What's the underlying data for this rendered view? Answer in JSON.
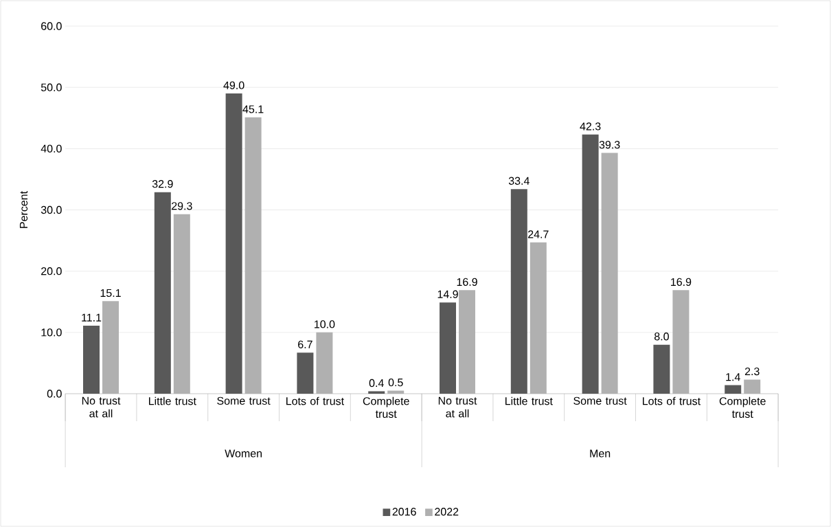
{
  "chart_data": {
    "type": "bar",
    "ylabel": "Percent",
    "categories": [
      "No trust at all",
      "Little trust",
      "Some trust",
      "Lots of trust",
      "Complete trust",
      "No trust at all",
      "Little trust",
      "Some trust",
      "Lots of trust",
      "Complete trust"
    ],
    "series": [
      {
        "name": "2016",
        "color": "#595959",
        "values": [
          11.1,
          32.9,
          49.0,
          6.7,
          0.4,
          14.9,
          33.4,
          42.3,
          8.0,
          1.4
        ],
        "value_labels": [
          "11.1",
          "32.9",
          "49.0",
          "6.7",
          "0.4",
          "14.9",
          "33.4",
          "42.3",
          "8.0",
          "1.4"
        ]
      },
      {
        "name": "2022",
        "color": "#b0b0b0",
        "values": [
          15.1,
          29.3,
          45.1,
          10.0,
          0.5,
          16.9,
          24.7,
          39.3,
          16.9,
          2.3
        ],
        "value_labels": [
          "15.1",
          "29.3",
          "45.1",
          "10.0",
          "0.5",
          "16.9",
          "24.7",
          "39.3",
          "16.9",
          "2.3"
        ]
      }
    ],
    "annotations": [
      "Women",
      "Men"
    ],
    "ylim": [
      0,
      60
    ],
    "yticks": [
      {
        "value": 0,
        "label": "0.0"
      },
      {
        "value": 10,
        "label": "10.0"
      },
      {
        "value": 20,
        "label": "20.0"
      },
      {
        "value": 30,
        "label": "30.0"
      },
      {
        "value": 40,
        "label": "40.0"
      },
      {
        "value": 50,
        "label": "50.0"
      },
      {
        "value": 60,
        "label": "60.0"
      }
    ],
    "grid": "y",
    "legend": "bottom"
  }
}
